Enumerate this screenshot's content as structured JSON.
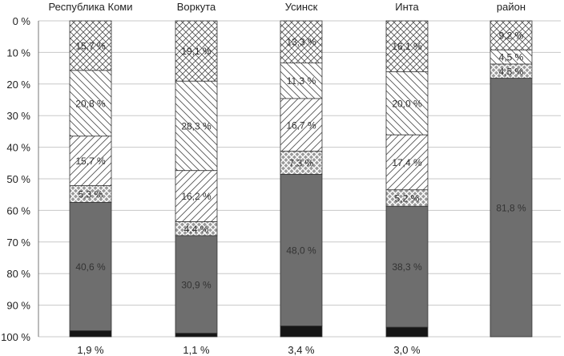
{
  "chart_data": {
    "type": "bar",
    "stacked": true,
    "orientation": "vertical",
    "y_axis_inverted": true,
    "ylim": [
      0,
      100
    ],
    "y_ticks": [
      "0 %",
      "10 %",
      "20 %",
      "30 %",
      "40 %",
      "50 %",
      "60 %",
      "70 %",
      "80 %",
      "90 %",
      "100 %"
    ],
    "categories": [
      "Республика Коми",
      "Воркута",
      "Усинск",
      "Инта",
      "район"
    ],
    "grid": true,
    "legend": "none",
    "series": [
      {
        "pattern": "crosshatch",
        "values": [
          15.7,
          19.1,
          13.3,
          16.1,
          9.2
        ],
        "labels": [
          "15,7 %",
          "19,1 %",
          "13,3 %",
          "16,1 %",
          "9,2 %"
        ]
      },
      {
        "pattern": "hatch-back",
        "values": [
          20.8,
          28.3,
          11.3,
          20.0,
          4.5
        ],
        "labels": [
          "20,8 %",
          "28,3 %",
          "11,3 %",
          "20,0 %",
          "4,5 %"
        ]
      },
      {
        "pattern": "hatch-forward",
        "values": [
          15.7,
          16.2,
          16.7,
          17.4,
          null
        ],
        "labels": [
          "15,7 %",
          "16,2 %",
          "16,7 %",
          "17,4 %",
          ""
        ]
      },
      {
        "pattern": "diamond",
        "values": [
          5.3,
          4.4,
          7.3,
          5.2,
          4.5
        ],
        "labels": [
          "5,3 %",
          "4,4 %",
          "7,3 %",
          "5,2 %",
          "4,5 %"
        ]
      },
      {
        "pattern": "dark-gray",
        "values": [
          40.6,
          30.9,
          48.0,
          38.3,
          81.8
        ],
        "labels": [
          "40,6 %",
          "30,9 %",
          "48,0 %",
          "38,3 %",
          "81,8 %"
        ]
      },
      {
        "pattern": "black",
        "values": [
          1.9,
          1.1,
          3.4,
          3.0,
          null
        ],
        "labels": [
          "1,9 %",
          "1,1 %",
          "3,4 %",
          "3,0 %",
          ""
        ]
      }
    ],
    "colors": {
      "dark": "#6e6e6e",
      "black": "#161616",
      "pattern_stroke": "#555555",
      "diamond_fill": "#9a9a9a",
      "grid": "#c8c8c8",
      "axis": "#777777"
    }
  }
}
